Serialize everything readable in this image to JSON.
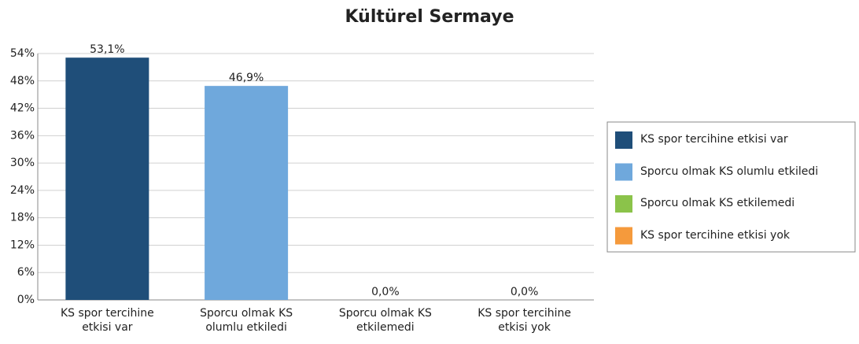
{
  "chart_data": {
    "type": "bar",
    "title": "Kültürel Sermaye",
    "categories": [
      "KS spor tercihine etkisi var",
      "Sporcu olmak KS olumlu etkiledi",
      "Sporcu olmak KS etkilemedi",
      "KS spor tercihine etkisi yok"
    ],
    "values": [
      53.1,
      46.9,
      0,
      0
    ],
    "value_labels": [
      "53,1%",
      "46,9%",
      "0,0%",
      "0,0%"
    ],
    "colors": [
      "#1f4e79",
      "#6fa8dc",
      "#8bc34a",
      "#f59a3c"
    ],
    "ylim": [
      0,
      54
    ],
    "yticks": [
      {
        "value": 0,
        "label": "0%"
      },
      {
        "value": 6,
        "label": "6%"
      },
      {
        "value": 12,
        "label": "12%"
      },
      {
        "value": 18,
        "label": "18%"
      },
      {
        "value": 24,
        "label": "24%"
      },
      {
        "value": 30,
        "label": "30%"
      },
      {
        "value": 36,
        "label": "36%"
      },
      {
        "value": 42,
        "label": "42%"
      },
      {
        "value": 48,
        "label": "48%"
      },
      {
        "value": 54,
        "label": "54%"
      }
    ],
    "grid": true,
    "legend": "right"
  }
}
